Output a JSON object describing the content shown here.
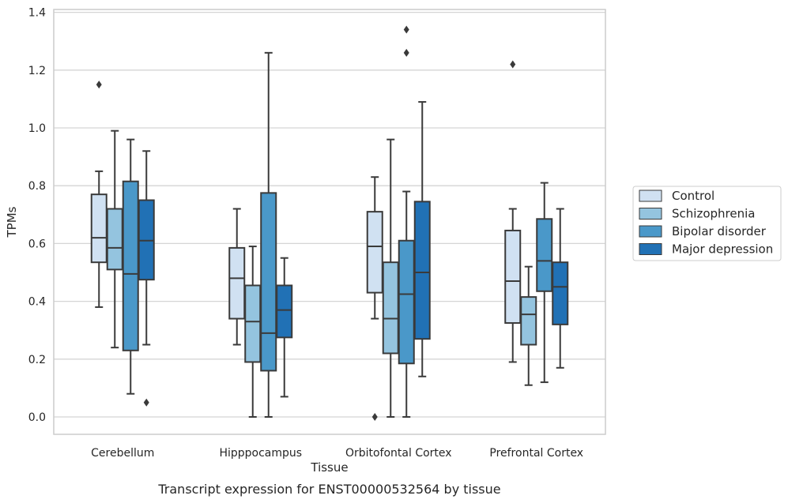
{
  "chart_data": {
    "type": "box",
    "caption": "Transcript expression for ENST00000532564 by tissue",
    "xlabel": "Tissue",
    "ylabel": "TPMs",
    "ylim": [
      -0.06,
      1.41
    ],
    "yticks": [
      0.0,
      0.2,
      0.4,
      0.6,
      0.8,
      1.0,
      1.2,
      1.4
    ],
    "ytick_labels": [
      "0.0",
      "0.2",
      "0.4",
      "0.6",
      "0.8",
      "1.0",
      "1.2",
      "1.4"
    ],
    "grid": "horizontal",
    "legend_position": "right",
    "categories": [
      "Cerebellum",
      "Hipppocampus",
      "Orbitofontal Cortex",
      "Prefrontal Cortex"
    ],
    "series": [
      {
        "name": "Control",
        "color": "#d0e1f2",
        "boxes": [
          {
            "whisker_low": 0.38,
            "q1": 0.535,
            "median": 0.62,
            "q3": 0.77,
            "whisker_high": 0.85,
            "outliers": [
              1.15
            ]
          },
          {
            "whisker_low": 0.25,
            "q1": 0.34,
            "median": 0.48,
            "q3": 0.585,
            "whisker_high": 0.72,
            "outliers": []
          },
          {
            "whisker_low": 0.34,
            "q1": 0.43,
            "median": 0.59,
            "q3": 0.71,
            "whisker_high": 0.83,
            "outliers": [
              0.0
            ]
          },
          {
            "whisker_low": 0.19,
            "q1": 0.325,
            "median": 0.47,
            "q3": 0.645,
            "whisker_high": 0.72,
            "outliers": [
              1.22
            ]
          }
        ]
      },
      {
        "name": "Schizophrenia",
        "color": "#94c4df",
        "boxes": [
          {
            "whisker_low": 0.24,
            "q1": 0.51,
            "median": 0.585,
            "q3": 0.72,
            "whisker_high": 0.99,
            "outliers": []
          },
          {
            "whisker_low": 0.0,
            "q1": 0.19,
            "median": 0.33,
            "q3": 0.455,
            "whisker_high": 0.59,
            "outliers": []
          },
          {
            "whisker_low": 0.0,
            "q1": 0.22,
            "median": 0.34,
            "q3": 0.535,
            "whisker_high": 0.96,
            "outliers": []
          },
          {
            "whisker_low": 0.11,
            "q1": 0.25,
            "median": 0.355,
            "q3": 0.415,
            "whisker_high": 0.52,
            "outliers": []
          }
        ]
      },
      {
        "name": "Bipolar disorder",
        "color": "#4a98c9",
        "boxes": [
          {
            "whisker_low": 0.08,
            "q1": 0.23,
            "median": 0.495,
            "q3": 0.815,
            "whisker_high": 0.96,
            "outliers": []
          },
          {
            "whisker_low": 0.0,
            "q1": 0.16,
            "median": 0.29,
            "q3": 0.775,
            "whisker_high": 1.26,
            "outliers": []
          },
          {
            "whisker_low": 0.0,
            "q1": 0.185,
            "median": 0.425,
            "q3": 0.61,
            "whisker_high": 0.78,
            "outliers": [
              1.26,
              1.34
            ]
          },
          {
            "whisker_low": 0.12,
            "q1": 0.435,
            "median": 0.54,
            "q3": 0.685,
            "whisker_high": 0.81,
            "outliers": []
          }
        ]
      },
      {
        "name": "Major depression",
        "color": "#2171b5",
        "boxes": [
          {
            "whisker_low": 0.25,
            "q1": 0.475,
            "median": 0.61,
            "q3": 0.75,
            "whisker_high": 0.92,
            "outliers": [
              0.05
            ]
          },
          {
            "whisker_low": 0.07,
            "q1": 0.275,
            "median": 0.37,
            "q3": 0.455,
            "whisker_high": 0.55,
            "outliers": []
          },
          {
            "whisker_low": 0.14,
            "q1": 0.27,
            "median": 0.5,
            "q3": 0.745,
            "whisker_high": 1.09,
            "outliers": []
          },
          {
            "whisker_low": 0.17,
            "q1": 0.32,
            "median": 0.45,
            "q3": 0.535,
            "whisker_high": 0.72,
            "outliers": []
          }
        ]
      }
    ]
  }
}
